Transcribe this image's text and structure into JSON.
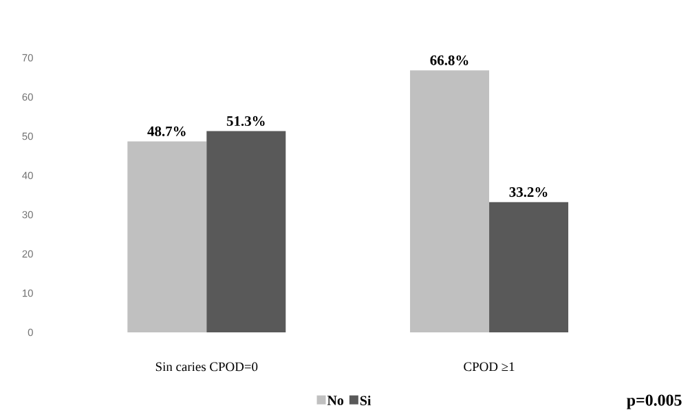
{
  "chart_data": {
    "type": "bar",
    "categories": [
      "Sin caries CPOD=0",
      "CPOD ≥1"
    ],
    "series": [
      {
        "name": "No",
        "color": "#c0c0c0",
        "values": [
          48.7,
          66.8
        ],
        "value_labels": [
          "48.7%",
          "66.8%"
        ]
      },
      {
        "name": "Si",
        "color": "#595959",
        "values": [
          51.3,
          33.2
        ],
        "value_labels": [
          "51.3%",
          "33.2%"
        ]
      }
    ],
    "ylim": [
      0,
      70
    ],
    "yticks": [
      0,
      10,
      20,
      30,
      40,
      50,
      60,
      70
    ],
    "grid": false,
    "legend": "bottom",
    "annotations": [
      "p=0.005"
    ]
  }
}
